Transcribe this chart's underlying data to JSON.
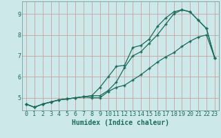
{
  "xlabel": "Humidex (Indice chaleur)",
  "bg_color": "#cce8e8",
  "grid_color": "#c8a0a0",
  "line_color": "#1a6b5a",
  "marker": "+",
  "xlim": [
    -0.5,
    23.5
  ],
  "ylim": [
    4.4,
    9.6
  ],
  "xticks": [
    0,
    1,
    2,
    3,
    4,
    5,
    6,
    7,
    8,
    9,
    10,
    11,
    12,
    13,
    14,
    15,
    16,
    17,
    18,
    19,
    20,
    21,
    22,
    23
  ],
  "yticks": [
    5,
    6,
    7,
    8,
    9
  ],
  "line1": {
    "x": [
      0,
      1,
      2,
      3,
      4,
      5,
      6,
      7,
      8,
      9,
      10,
      11,
      12,
      13,
      14,
      15,
      16,
      17,
      18,
      19,
      20,
      21,
      22,
      23
    ],
    "y": [
      4.7,
      4.55,
      4.7,
      4.8,
      4.9,
      4.95,
      5.0,
      5.05,
      5.1,
      5.5,
      6.0,
      6.5,
      6.55,
      7.4,
      7.5,
      7.8,
      8.4,
      8.8,
      9.1,
      9.2,
      9.1,
      8.7,
      8.3,
      6.9
    ]
  },
  "line2": {
    "x": [
      0,
      1,
      2,
      3,
      4,
      5,
      6,
      7,
      8,
      9,
      10,
      11,
      12,
      13,
      14,
      15,
      16,
      17,
      18,
      19,
      20,
      21,
      22,
      23
    ],
    "y": [
      4.7,
      4.55,
      4.7,
      4.8,
      4.9,
      4.95,
      5.0,
      5.05,
      5.1,
      5.1,
      5.35,
      5.75,
      6.45,
      7.0,
      7.2,
      7.6,
      8.0,
      8.5,
      9.0,
      9.2,
      9.1,
      8.7,
      8.3,
      6.9
    ]
  },
  "line3": {
    "x": [
      0,
      1,
      2,
      3,
      4,
      5,
      6,
      7,
      8,
      9,
      10,
      11,
      12,
      13,
      14,
      15,
      16,
      17,
      18,
      19,
      20,
      21,
      22,
      23
    ],
    "y": [
      4.7,
      4.55,
      4.7,
      4.8,
      4.9,
      4.95,
      5.0,
      5.05,
      5.0,
      5.0,
      5.3,
      5.5,
      5.6,
      5.85,
      6.1,
      6.4,
      6.7,
      6.95,
      7.15,
      7.45,
      7.7,
      7.9,
      8.0,
      6.9
    ]
  },
  "xlabel_fontsize": 7,
  "tick_fontsize": 6
}
